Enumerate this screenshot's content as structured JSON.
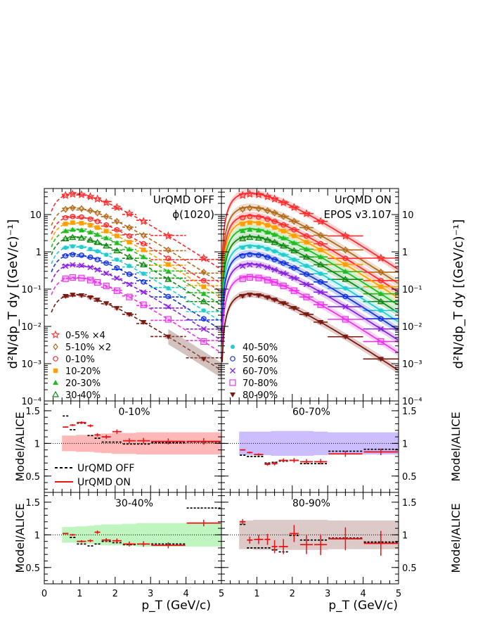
{
  "chart_data": {
    "type": "scatter",
    "main_panels": [
      {
        "id": "off",
        "label_line1": "UrQMD OFF",
        "label_line2": "ϕ(1020)",
        "line_style": "dashed",
        "x_range": [
          0,
          5
        ],
        "y_range": [
          0.0001,
          50
        ],
        "y_scale": "log"
      },
      {
        "id": "on",
        "label_line1": "UrQMD ON",
        "label_line2": "EPOS v3.107",
        "line_style": "solid",
        "x_range": [
          0,
          5
        ],
        "y_range": [
          0.0001,
          50
        ],
        "y_scale": "log"
      }
    ],
    "y_axis_title": "d²N/dp_T dy [(GeV/c)⁻¹]",
    "x_axis_title": "p_T (GeV/c)",
    "x_ticks": [
      "0",
      "1",
      "2",
      "3",
      "4",
      "5"
    ],
    "y_log_ticks": [
      "10⁻⁴",
      "10⁻³",
      "10⁻²",
      "10⁻¹",
      "1",
      "10"
    ],
    "pt_bins": [
      0.5,
      0.7,
      0.9,
      1.2,
      1.4,
      1.6,
      1.9,
      2.2,
      2.6,
      3.0,
      4.0,
      5.0
    ],
    "series": [
      {
        "name": "0-5% ×4",
        "color": "#ff2a2a",
        "marker": "star",
        "scale_at_peak": 38
      },
      {
        "name": "5-10% ×2",
        "color": "#b06a1a",
        "marker": "diamond",
        "scale_at_peak": 16
      },
      {
        "name": "0-10%",
        "color": "#ff2a2a",
        "marker": "circle",
        "scale_at_peak": 9.5
      },
      {
        "name": "10-20%",
        "color": "#ffa000",
        "marker": "square-filled",
        "scale_at_peak": 6.5
      },
      {
        "name": "20-30%",
        "color": "#22bb22",
        "marker": "triangle-filled",
        "scale_at_peak": 4.2
      },
      {
        "name": "30-40%",
        "color": "#118811",
        "marker": "triangle",
        "scale_at_peak": 2.6
      },
      {
        "name": "40-50%",
        "color": "#22cccc",
        "marker": "circle-filled",
        "scale_at_peak": 1.5
      },
      {
        "name": "50-60%",
        "color": "#1133dd",
        "marker": "circle",
        "scale_at_peak": 0.9
      },
      {
        "name": "60-70%",
        "color": "#8822dd",
        "marker": "cross",
        "scale_at_peak": 0.48
      },
      {
        "name": "70-80%",
        "color": "#ee33ee",
        "marker": "square",
        "scale_at_peak": 0.22
      },
      {
        "name": "80-90%",
        "color": "#7a1a10",
        "marker": "triangle-down-filled",
        "scale_at_peak": 0.075
      }
    ],
    "legend_left": [
      "0-5% ×4",
      "5-10% ×2",
      "0-10%",
      "10-20%",
      "20-30%",
      "30-40%"
    ],
    "legend_right": [
      "40-50%",
      "50-60%",
      "60-70%",
      "70-80%",
      "80-90%"
    ],
    "ratio_panels": [
      {
        "id": "r010",
        "label": "0-10%",
        "band_color": "#ffb0b0",
        "band": [
          0.12,
          0.12,
          0.13,
          0.13,
          0.14,
          0.15,
          0.16,
          0.16,
          0.17,
          0.17,
          0.17
        ],
        "off": [
          1.42,
          1.21,
          1.31,
          1.12,
          1.08,
          1.02,
          1.02,
          0.99,
          0.99,
          1.01,
          1.02
        ],
        "on": [
          1.25,
          1.28,
          1.32,
          1.27,
          1.13,
          1.1,
          1.18,
          1.04,
          1.04,
          1.03,
          1.03
        ],
        "y_range": [
          0.25,
          1.65
        ]
      },
      {
        "id": "r6070",
        "label": "60-70%",
        "band_color": "#c7b6ff",
        "band": [
          0.18,
          0.18,
          0.18,
          0.18,
          0.19,
          0.19,
          0.19,
          0.19,
          0.18,
          0.17,
          0.17
        ],
        "off": [
          0.82,
          0.8,
          0.8,
          0.7,
          0.71,
          0.73,
          0.74,
          0.69,
          0.69,
          0.88,
          0.91
        ],
        "on": [
          0.9,
          0.86,
          0.83,
          0.68,
          0.69,
          0.74,
          0.74,
          0.72,
          0.72,
          0.84,
          0.87
        ],
        "y_range": [
          0.25,
          1.65
        ]
      },
      {
        "id": "r3040",
        "label": "30-40%",
        "band_color": "#b8f5b8",
        "band": [
          0.12,
          0.12,
          0.13,
          0.14,
          0.15,
          0.16,
          0.16,
          0.17,
          0.18,
          0.18,
          0.18
        ],
        "off": [
          1.02,
          0.96,
          0.86,
          0.83,
          0.86,
          0.9,
          0.88,
          0.85,
          0.86,
          0.86,
          1.41
        ],
        "on": [
          1.02,
          1.0,
          0.9,
          0.91,
          1.04,
          0.92,
          0.91,
          0.86,
          0.86,
          0.84,
          1.18
        ],
        "y_range": [
          0.25,
          1.65
        ]
      },
      {
        "id": "r8090",
        "label": "80-90%",
        "band_color": "#d8c4c2",
        "band": [
          0.22,
          0.22,
          0.23,
          0.23,
          0.23,
          0.23,
          0.23,
          0.23,
          0.23,
          0.22,
          0.22
        ],
        "off": [
          1.16,
          0.8,
          0.8,
          0.8,
          0.77,
          0.74,
          0.99,
          0.92,
          0.92,
          0.95,
          0.89
        ],
        "on": [
          1.2,
          0.92,
          0.93,
          0.93,
          0.82,
          0.82,
          1.02,
          0.85,
          0.85,
          0.94,
          0.87
        ],
        "y_range": [
          0.25,
          1.65
        ]
      }
    ],
    "ratio_y_ticks": [
      "0.5",
      "1",
      "1.5"
    ],
    "ratio_y_title": "Model/ALICE",
    "ratio_legend": {
      "off": "UrQMD OFF",
      "on": "UrQMD ON"
    }
  }
}
